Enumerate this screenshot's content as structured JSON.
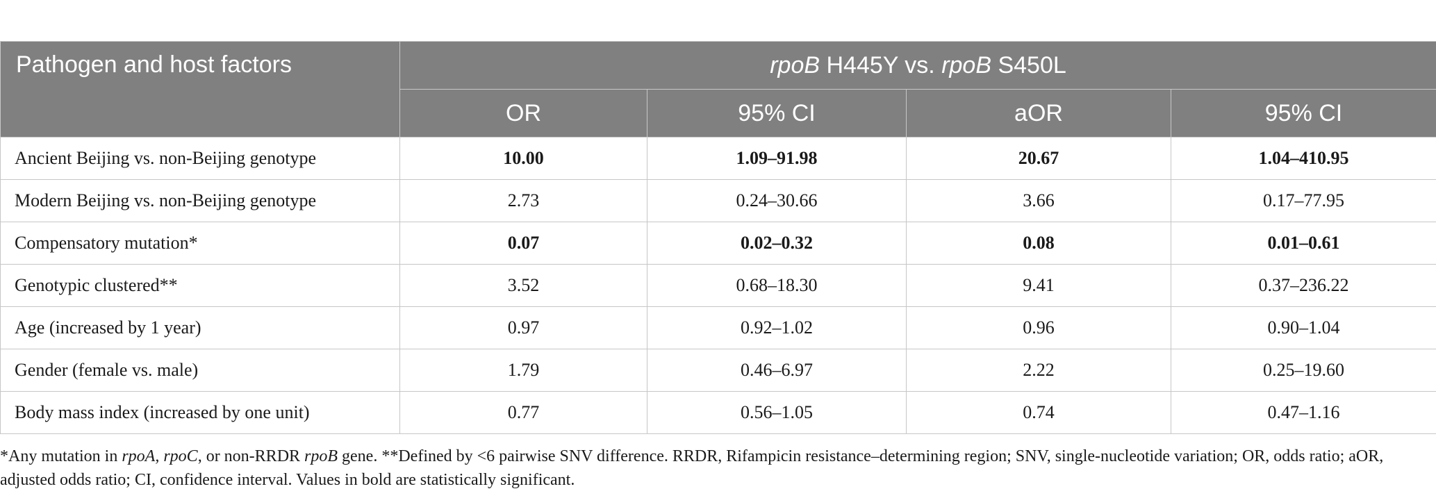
{
  "header": {
    "factor_col": "Pathogen and host factors",
    "group_gene_a": "rpoB",
    "group_mid": " H445Y vs. ",
    "group_gene_b": "rpoB",
    "group_tail": " S450L",
    "sub_headers": [
      "OR",
      "95% CI",
      "aOR",
      "95% CI"
    ]
  },
  "rows": [
    {
      "factor": "Ancient Beijing vs. non-Beijing genotype",
      "or": "10.00",
      "ci": "1.09–91.98",
      "aor": "20.67",
      "aci": "1.04–410.95",
      "significant": true
    },
    {
      "factor": "Modern Beijing vs. non-Beijing genotype",
      "or": "2.73",
      "ci": "0.24–30.66",
      "aor": "3.66",
      "aci": "0.17–77.95",
      "significant": false
    },
    {
      "factor": "Compensatory mutation*",
      "or": "0.07",
      "ci": "0.02–0.32",
      "aor": "0.08",
      "aci": "0.01–0.61",
      "significant": true
    },
    {
      "factor": "Genotypic clustered**",
      "or": "3.52",
      "ci": "0.68–18.30",
      "aor": "9.41",
      "aci": "0.37–236.22",
      "significant": false
    },
    {
      "factor": "Age (increased by 1 year)",
      "or": "0.97",
      "ci": "0.92–1.02",
      "aor": "0.96",
      "aci": "0.90–1.04",
      "significant": false
    },
    {
      "factor": "Gender (female vs. male)",
      "or": "1.79",
      "ci": "0.46–6.97",
      "aor": "2.22",
      "aci": "0.25–19.60",
      "significant": false
    },
    {
      "factor": "Body mass index (increased by one unit)",
      "or": "0.77",
      "ci": "0.56–1.05",
      "aor": "0.74",
      "aci": "0.47–1.16",
      "significant": false
    }
  ],
  "footnote": {
    "p1": "*Any mutation in ",
    "gene1": "rpoA, rpoC",
    "p2": ", or non-RRDR ",
    "gene2": "rpoB",
    "p3": " gene. **Defined by <6 pairwise SNV difference. RRDR, Rifampicin resistance–determining region; SNV, single-nucleotide variation; OR, odds ratio; aOR, adjusted odds ratio; CI, confidence interval. Values in bold are statistically significant."
  },
  "colors": {
    "header_bg": "#808080",
    "header_text": "#ffffff",
    "grid": "#c6c6c6"
  }
}
